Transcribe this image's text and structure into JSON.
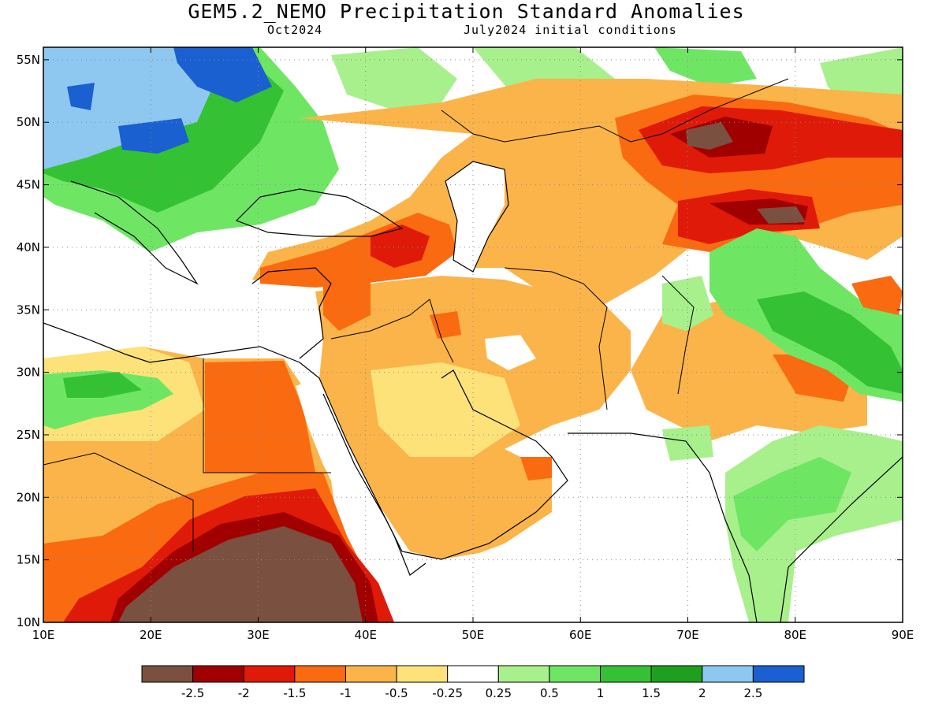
{
  "header": {
    "title": "GEM5.2_NEMO Precipitation Standard Anomalies",
    "target_month": "Oct2024",
    "initial_conditions": "July2024 initial conditions"
  },
  "map": {
    "lon_range": [
      10,
      90
    ],
    "lat_range": [
      10,
      56
    ],
    "lat_ticks": [
      {
        "value": 55,
        "label": "55N"
      },
      {
        "value": 50,
        "label": "50N"
      },
      {
        "value": 45,
        "label": "45N"
      },
      {
        "value": 40,
        "label": "40N"
      },
      {
        "value": 35,
        "label": "35N"
      },
      {
        "value": 30,
        "label": "30N"
      },
      {
        "value": 25,
        "label": "25N"
      },
      {
        "value": 20,
        "label": "20N"
      },
      {
        "value": 15,
        "label": "15N"
      },
      {
        "value": 10,
        "label": "10N"
      }
    ],
    "lon_ticks": [
      {
        "value": 10,
        "label": "10E"
      },
      {
        "value": 20,
        "label": "20E"
      },
      {
        "value": 30,
        "label": "30E"
      },
      {
        "value": 40,
        "label": "40E"
      },
      {
        "value": 50,
        "label": "50E"
      },
      {
        "value": 60,
        "label": "60E"
      },
      {
        "value": 70,
        "label": "70E"
      },
      {
        "value": 80,
        "label": "80E"
      },
      {
        "value": 90,
        "label": "90E"
      }
    ],
    "gridlines": true
  },
  "legend": {
    "bins": [
      {
        "color": "#7a5040"
      },
      {
        "color": "#a00000"
      },
      {
        "color": "#e01a08"
      },
      {
        "color": "#fa6a10"
      },
      {
        "color": "#fbb44a"
      },
      {
        "color": "#fde27a"
      },
      {
        "color": "#ffffff"
      },
      {
        "color": "#a8f08c"
      },
      {
        "color": "#6ee664"
      },
      {
        "color": "#34c234"
      },
      {
        "color": "#1ea01e"
      },
      {
        "color": "#8ec8f0"
      },
      {
        "color": "#1a60d0"
      }
    ],
    "labels": [
      "-2.5",
      "-2",
      "-1.5",
      "-1",
      "-0.5",
      "-0.25",
      "0.25",
      "0.5",
      "1",
      "1.5",
      "2",
      "2.5"
    ]
  }
}
